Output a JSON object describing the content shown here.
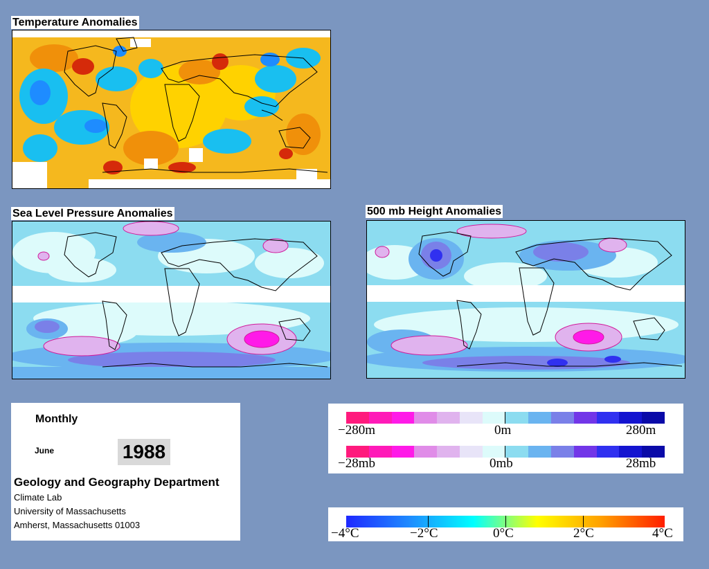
{
  "maps": {
    "temperature": {
      "title": "Temperature Anomalies"
    },
    "sea_level_pressure": {
      "title": "Sea Level Pressure Anomalies"
    },
    "height_500mb": {
      "title": "500 mb Height Anomalies"
    }
  },
  "info": {
    "period": "Monthly",
    "month": "June",
    "year": "1988",
    "department": "Geology and Geography Department",
    "lab": "Climate Lab",
    "university": "University of Massachusetts",
    "address": "Amherst, Massachusetts 01003"
  },
  "legends": {
    "height": {
      "labels": [
        "−280m",
        "0m",
        "280m"
      ],
      "colors": [
        "#ff1a7d",
        "#ff1ab8",
        "#ff1ae8",
        "#e08ce8",
        "#e0b3ee",
        "#e8e4f8",
        "#ddfbfb",
        "#8cdcf0",
        "#6ab4f0",
        "#7a80e8",
        "#7236e8",
        "#3030f0",
        "#1414d0",
        "#0a0aa8"
      ]
    },
    "pressure": {
      "labels": [
        "−28mb",
        "0mb",
        "28mb"
      ],
      "colors": [
        "#ff1a7d",
        "#ff1ab8",
        "#ff1ae8",
        "#e08ce8",
        "#e0b3ee",
        "#e8e4f8",
        "#ddfbfb",
        "#8cdcf0",
        "#6ab4f0",
        "#7a80e8",
        "#7236e8",
        "#3030f0",
        "#1414d0",
        "#0a0aa8"
      ]
    },
    "temperature": {
      "labels": [
        "−4°C",
        "−2°C",
        "0°C",
        "2°C",
        "4°C"
      ],
      "gradient": [
        "#1e28ff",
        "#1e8cff",
        "#00ffff",
        "#ffff00",
        "#ffa000",
        "#ff1e00"
      ]
    }
  }
}
